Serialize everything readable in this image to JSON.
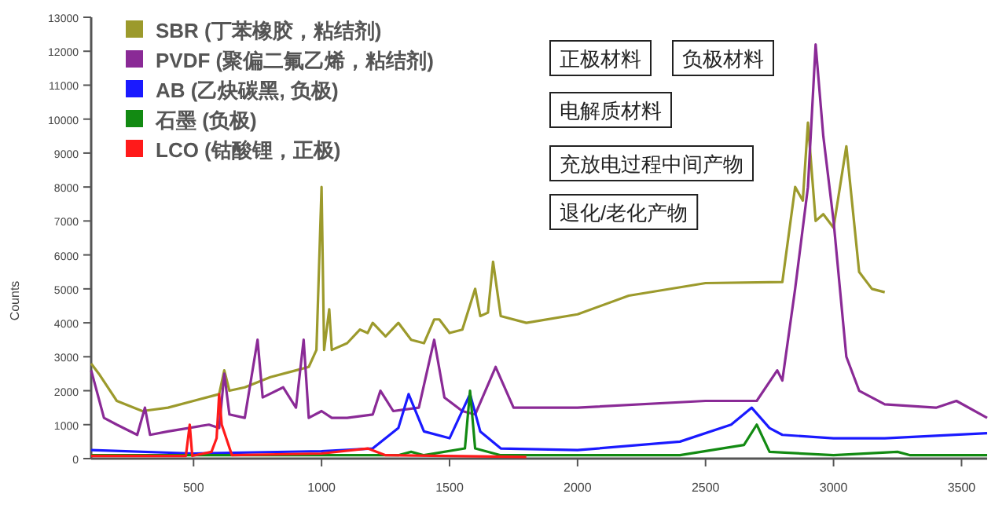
{
  "chart_data": {
    "type": "line",
    "ylabel": "Counts",
    "xlim": [
      100,
      3600
    ],
    "ylim": [
      0,
      13000
    ],
    "xticks": [
      500,
      1000,
      1500,
      2000,
      2500,
      3000,
      3500
    ],
    "yticks": [
      0,
      1000,
      2000,
      3000,
      4000,
      5000,
      6000,
      7000,
      8000,
      9000,
      10000,
      11000,
      12000,
      13000
    ],
    "legend": "top left",
    "annotations": [
      "正极材料",
      "负极材料",
      "电解质材料",
      "充放电过程中间产物",
      "退化/老化产物"
    ],
    "series": [
      {
        "name": "SBR (丁苯橡胶，粘结剂)",
        "color": "#9c9a2c",
        "x": [
          100,
          130,
          200,
          300,
          400,
          500,
          600,
          620,
          640,
          700,
          800,
          900,
          950,
          980,
          1000,
          1010,
          1030,
          1040,
          1100,
          1150,
          1180,
          1200,
          1250,
          1300,
          1350,
          1400,
          1440,
          1460,
          1500,
          1550,
          1600,
          1620,
          1650,
          1670,
          1700,
          1800,
          2000,
          2200,
          2500,
          2800,
          2850,
          2880,
          2900,
          2930,
          2960,
          3000,
          3050,
          3100,
          3150,
          3200
        ],
        "values": [
          2800,
          2500,
          1700,
          1400,
          1500,
          1700,
          1900,
          2600,
          2000,
          2100,
          2400,
          2600,
          2700,
          3200,
          8000,
          3200,
          4400,
          3200,
          3400,
          3800,
          3700,
          4000,
          3600,
          4000,
          3500,
          3400,
          4100,
          4100,
          3700,
          3800,
          5000,
          4200,
          4300,
          5800,
          4200,
          4000,
          4250,
          4800,
          5170,
          5200,
          8000,
          7600,
          9900,
          7000,
          7200,
          6800,
          9200,
          5500,
          5000,
          4900
        ]
      },
      {
        "name": "PVDF (聚偏二氟乙烯，粘结剂)",
        "color": "#8a2a96",
        "x": [
          100,
          150,
          200,
          280,
          310,
          330,
          400,
          480,
          560,
          600,
          620,
          640,
          700,
          750,
          770,
          850,
          900,
          930,
          950,
          1000,
          1040,
          1100,
          1200,
          1230,
          1280,
          1380,
          1440,
          1480,
          1550,
          1600,
          1680,
          1750,
          1800,
          2000,
          2500,
          2700,
          2780,
          2800,
          2850,
          2900,
          2930,
          2960,
          3000,
          3050,
          3100,
          3200,
          3400,
          3480,
          3600
        ],
        "values": [
          2600,
          1200,
          1000,
          700,
          1500,
          700,
          800,
          900,
          1000,
          900,
          2500,
          1300,
          1200,
          3500,
          1800,
          2100,
          1500,
          3500,
          1200,
          1400,
          1200,
          1200,
          1300,
          2000,
          1400,
          1500,
          3500,
          1800,
          1400,
          1300,
          2700,
          1500,
          1500,
          1500,
          1700,
          1700,
          2600,
          2300,
          5000,
          8000,
          12200,
          9500,
          7000,
          3000,
          2000,
          1600,
          1500,
          1700,
          1200
        ]
      },
      {
        "name": "AB (乙炔碳黑, 负极)",
        "color": "#1a1aff",
        "x": [
          100,
          500,
          1000,
          1200,
          1300,
          1340,
          1400,
          1500,
          1580,
          1620,
          1700,
          2000,
          2400,
          2600,
          2680,
          2750,
          2800,
          3000,
          3200,
          3600
        ],
        "values": [
          250,
          150,
          220,
          300,
          900,
          1900,
          800,
          600,
          1900,
          800,
          300,
          250,
          500,
          1000,
          1500,
          900,
          700,
          600,
          600,
          750
        ]
      },
      {
        "name": "石墨 (负极)",
        "color": "#128a12",
        "x": [
          100,
          1300,
          1350,
          1400,
          1560,
          1580,
          1600,
          1700,
          2400,
          2650,
          2700,
          2750,
          3000,
          3250,
          3300,
          3600
        ],
        "values": [
          100,
          100,
          200,
          100,
          300,
          2000,
          300,
          100,
          100,
          400,
          1000,
          200,
          100,
          200,
          100,
          100
        ]
      },
      {
        "name": "LCO (钴酸锂，正极)",
        "color": "#ff1a1a",
        "x": [
          100,
          470,
          485,
          495,
          570,
          590,
          600,
          610,
          650,
          1000,
          1180,
          1250,
          1800
        ],
        "values": [
          80,
          80,
          1000,
          80,
          200,
          600,
          1900,
          1000,
          100,
          150,
          300,
          100,
          50
        ]
      }
    ]
  }
}
